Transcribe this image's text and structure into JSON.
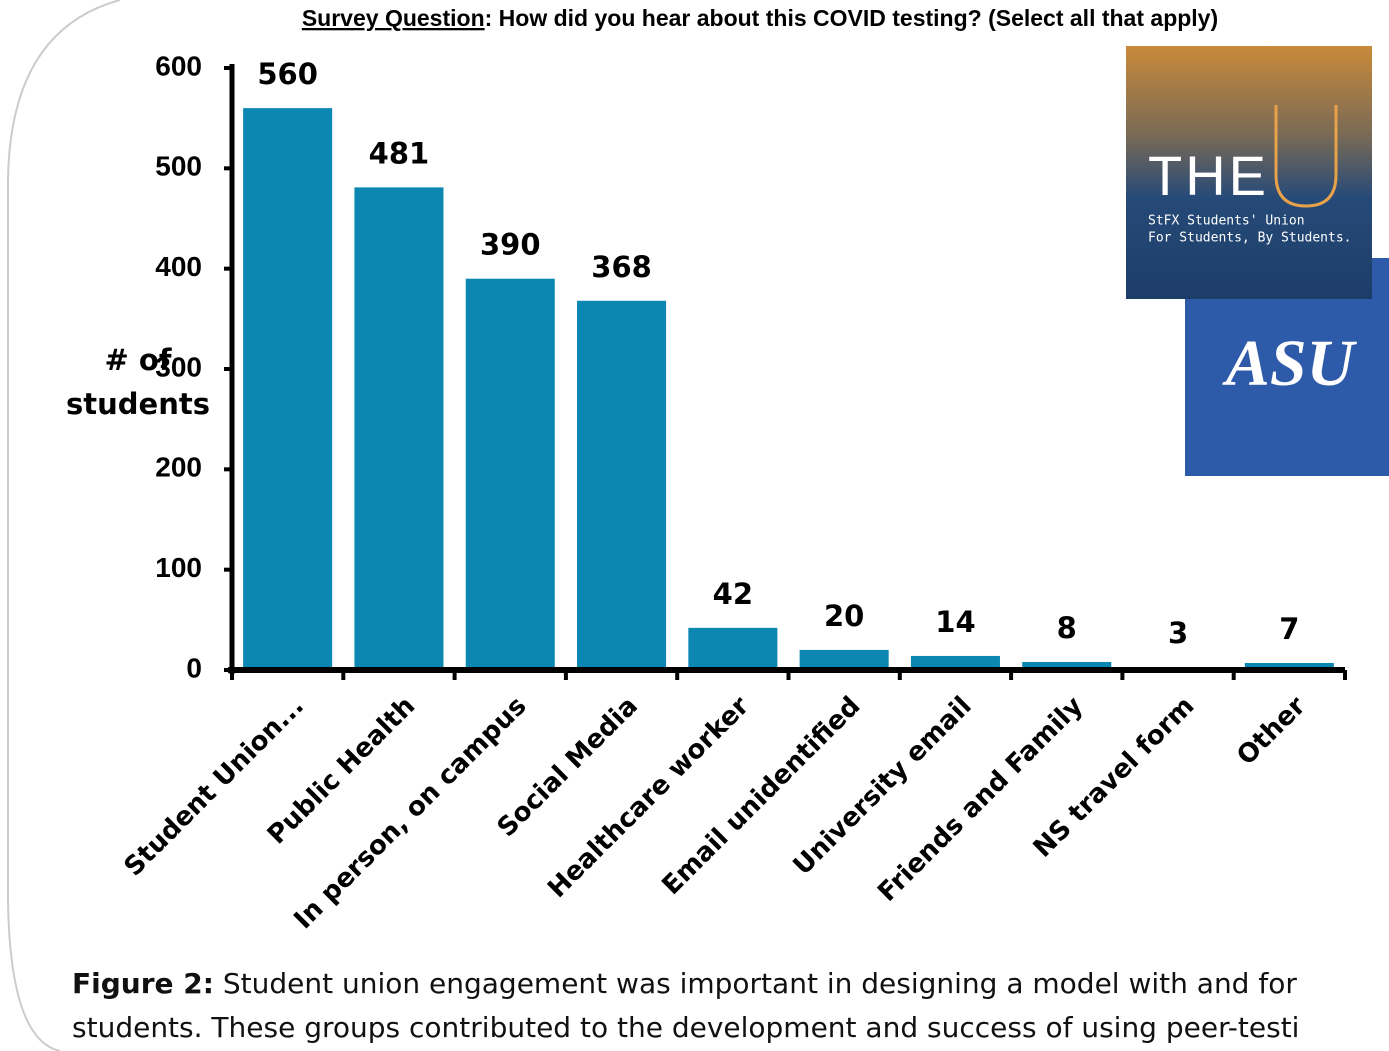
{
  "chart_data": {
    "type": "bar",
    "title_lead": "Survey Question",
    "title": ": How did you hear about this COVID testing? (Select all that apply)",
    "y_label": [
      "# of",
      "students"
    ],
    "categories": [
      "Student Union...",
      "Public Health",
      "In person, on campus",
      "Social Media",
      "Healthcare worker",
      "Email unidentified",
      "University email",
      "Friends and Family",
      "NS travel form",
      "Other"
    ],
    "values": [
      560,
      481,
      390,
      368,
      42,
      20,
      14,
      8,
      3,
      7
    ],
    "color": "#0b87b2",
    "ylim": [
      0,
      600
    ],
    "yticks": [
      0,
      100,
      200,
      300,
      400,
      500,
      600
    ],
    "grid": false
  },
  "logos": {
    "the_u": {
      "title": "THE",
      "lines": [
        "StFX Students' Union",
        "For Students, By Students."
      ]
    },
    "asu": "ASU"
  },
  "caption": {
    "label": "Figure 2:",
    "text": " Student union engagement was important in designing a model with and for students. These groups contributed to the development and success of using peer-testi"
  }
}
